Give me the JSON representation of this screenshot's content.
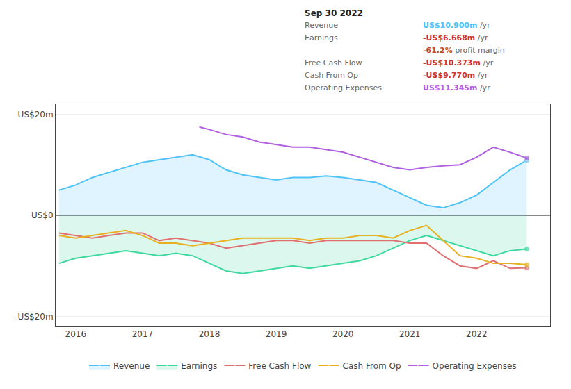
{
  "chart_data": {
    "type": "line",
    "xlim": [
      2015.7,
      2023.1
    ],
    "xticks": [
      2016,
      2017,
      2018,
      2019,
      2020,
      2021,
      2022
    ],
    "ylim": [
      -22,
      22
    ],
    "yticks": [
      {
        "value": -20,
        "label": "-US$20m"
      },
      {
        "value": 0,
        "label": "US$0"
      },
      {
        "value": 20,
        "label": "US$20m"
      }
    ],
    "grid": true,
    "legend": "bottom",
    "series": [
      {
        "name": "Revenue",
        "color": "#4fc3f7",
        "x": [
          2015.75,
          2016.0,
          2016.25,
          2016.5,
          2016.75,
          2017.0,
          2017.25,
          2017.5,
          2017.75,
          2018.0,
          2018.25,
          2018.5,
          2018.75,
          2019.0,
          2019.25,
          2019.5,
          2019.75,
          2020.0,
          2020.25,
          2020.5,
          2020.75,
          2021.0,
          2021.25,
          2021.5,
          2021.75,
          2022.0,
          2022.25,
          2022.5,
          2022.75
        ],
        "values": [
          5.0,
          6.0,
          7.5,
          8.5,
          9.5,
          10.5,
          11.0,
          11.5,
          12.0,
          11.0,
          9.0,
          8.0,
          7.5,
          7.0,
          7.5,
          7.5,
          7.8,
          7.5,
          7.0,
          6.5,
          5.0,
          3.5,
          2.0,
          1.5,
          2.5,
          4.0,
          6.5,
          9.0,
          10.9
        ]
      },
      {
        "name": "Earnings",
        "color": "#3dd9a0",
        "x": [
          2015.75,
          2016.0,
          2016.25,
          2016.5,
          2016.75,
          2017.0,
          2017.25,
          2017.5,
          2017.75,
          2018.0,
          2018.25,
          2018.5,
          2018.75,
          2019.0,
          2019.25,
          2019.5,
          2019.75,
          2020.0,
          2020.25,
          2020.5,
          2020.75,
          2021.0,
          2021.25,
          2021.5,
          2021.75,
          2022.0,
          2022.25,
          2022.5,
          2022.75
        ],
        "values": [
          -9.5,
          -8.5,
          -8.0,
          -7.5,
          -7.0,
          -7.5,
          -8.0,
          -7.5,
          -8.0,
          -9.5,
          -11.0,
          -11.5,
          -11.0,
          -10.5,
          -10.0,
          -10.5,
          -10.0,
          -9.5,
          -9.0,
          -8.0,
          -6.5,
          -5.0,
          -4.0,
          -5.0,
          -6.0,
          -7.0,
          -8.0,
          -7.0,
          -6.668
        ]
      },
      {
        "name": "Free Cash Flow",
        "color": "#e07070",
        "x": [
          2015.75,
          2016.0,
          2016.25,
          2016.5,
          2016.75,
          2017.0,
          2017.25,
          2017.5,
          2017.75,
          2018.0,
          2018.25,
          2018.5,
          2018.75,
          2019.0,
          2019.25,
          2019.5,
          2019.75,
          2020.0,
          2020.25,
          2020.5,
          2020.75,
          2021.0,
          2021.25,
          2021.5,
          2021.75,
          2022.0,
          2022.25,
          2022.5,
          2022.75
        ],
        "values": [
          -3.5,
          -4.0,
          -4.5,
          -4.0,
          -3.5,
          -3.5,
          -5.0,
          -4.5,
          -5.0,
          -5.5,
          -6.5,
          -6.0,
          -5.5,
          -5.0,
          -5.0,
          -5.5,
          -5.0,
          -5.0,
          -5.0,
          -5.0,
          -5.0,
          -5.5,
          -5.5,
          -8.0,
          -10.0,
          -10.5,
          -9.0,
          -10.5,
          -10.373
        ]
      },
      {
        "name": "Cash From Op",
        "color": "#e8b020",
        "x": [
          2015.75,
          2016.0,
          2016.25,
          2016.5,
          2016.75,
          2017.0,
          2017.25,
          2017.5,
          2017.75,
          2018.0,
          2018.25,
          2018.5,
          2018.75,
          2019.0,
          2019.25,
          2019.5,
          2019.75,
          2020.0,
          2020.25,
          2020.5,
          2020.75,
          2021.0,
          2021.25,
          2021.5,
          2021.75,
          2022.0,
          2022.25,
          2022.5,
          2022.75
        ],
        "values": [
          -4.0,
          -4.5,
          -4.0,
          -3.5,
          -3.0,
          -4.0,
          -5.5,
          -5.5,
          -6.0,
          -5.5,
          -5.0,
          -4.5,
          -4.5,
          -4.5,
          -4.5,
          -5.0,
          -4.5,
          -4.5,
          -4.0,
          -4.0,
          -4.5,
          -3.0,
          -2.0,
          -5.0,
          -8.0,
          -8.5,
          -9.5,
          -9.5,
          -9.77
        ]
      },
      {
        "name": "Operating Expenses",
        "color": "#b060e0",
        "x": [
          2017.85,
          2018.0,
          2018.25,
          2018.5,
          2018.75,
          2019.0,
          2019.25,
          2019.5,
          2019.75,
          2020.0,
          2020.25,
          2020.5,
          2020.75,
          2021.0,
          2021.25,
          2021.5,
          2021.75,
          2022.0,
          2022.25,
          2022.5,
          2022.75
        ],
        "values": [
          17.5,
          17.0,
          16.0,
          15.5,
          14.5,
          14.0,
          13.5,
          13.5,
          13.0,
          12.5,
          11.5,
          10.5,
          9.5,
          9.0,
          9.5,
          9.8,
          10.0,
          11.5,
          13.5,
          12.5,
          11.345
        ]
      }
    ],
    "annotations": [
      {
        "text": "Sep 30 2022"
      },
      {
        "label": "Revenue",
        "text": "US$10.900m",
        "suffix": " /yr",
        "color": "#4fc3f7"
      },
      {
        "label": "Earnings",
        "text": "-US$6.668m",
        "suffix": " /yr",
        "color": "#cc3333"
      },
      {
        "text": "-61.2%",
        "suffix": " profit margin",
        "color": "#cc4422"
      },
      {
        "label": "Free Cash Flow",
        "text": "-US$10.373m",
        "suffix": " /yr",
        "color": "#cc3333"
      },
      {
        "label": "Cash From Op",
        "text": "-US$9.770m",
        "suffix": " /yr",
        "color": "#cc3333"
      },
      {
        "label": "Operating Expenses",
        "text": "US$11.345m",
        "suffix": " /yr",
        "color": "#b060e0"
      }
    ]
  }
}
